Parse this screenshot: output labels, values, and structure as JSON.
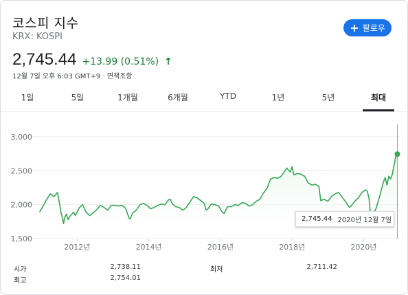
{
  "header": {
    "title": "코스피 지수",
    "ticker": "KRX: KOSPI",
    "follow_label": "팔로우",
    "price": "2,745.44",
    "change": "+13.99 (0.51%)",
    "meta": "12월 7일 오후 6:03 GMT+9 · 면책조항"
  },
  "tabs": [
    {
      "label": "1일"
    },
    {
      "label": "5일"
    },
    {
      "label": "1개월"
    },
    {
      "label": "6개월"
    },
    {
      "label": "YTD"
    },
    {
      "label": "1년"
    },
    {
      "label": "5년"
    },
    {
      "label": "최대"
    }
  ],
  "tooltip": {
    "value": "2,745.44",
    "date": "2020년 12월 7일"
  },
  "stats": {
    "open_label": "시가",
    "open_value": "2,738.11",
    "low_label": "최저",
    "low_value": "2,711.42",
    "high_label": "최고",
    "high_value": "2,754.01"
  },
  "colors": {
    "line": "#34a853",
    "accent": "#1a73e8",
    "positive": "#188038"
  },
  "chart_data": {
    "type": "line",
    "grid": true,
    "ylim": [
      1500,
      3000
    ],
    "yticks": [
      "3,000",
      "2,500",
      "2,000",
      "1,500"
    ],
    "ytick_values": [
      3000,
      2500,
      2000,
      1500
    ],
    "xticks": [
      "2012년",
      "2014년",
      "2016년",
      "2018년",
      "2020년"
    ],
    "xtick_values": [
      2012,
      2014,
      2016,
      2018,
      2020
    ],
    "xlim": [
      2010.9,
      2020.95
    ],
    "series": [
      {
        "x": [
          2010.95,
          2011.05,
          2011.15,
          2011.25,
          2011.35,
          2011.45,
          2011.5,
          2011.55,
          2011.6,
          2011.62,
          2011.65,
          2011.7,
          2011.75,
          2011.8,
          2011.85,
          2011.9,
          2011.95,
          2012.05,
          2012.15,
          2012.25,
          2012.35,
          2012.45,
          2012.55,
          2012.65,
          2012.75,
          2012.85,
          2012.95,
          2013.05,
          2013.15,
          2013.25,
          2013.35,
          2013.45,
          2013.48,
          2013.55,
          2013.65,
          2013.75,
          2013.85,
          2013.95,
          2014.05,
          2014.15,
          2014.25,
          2014.35,
          2014.45,
          2014.55,
          2014.6,
          2014.65,
          2014.75,
          2014.85,
          2014.95,
          2015.05,
          2015.15,
          2015.25,
          2015.35,
          2015.45,
          2015.55,
          2015.6,
          2015.65,
          2015.75,
          2015.85,
          2015.95,
          2016.05,
          2016.1,
          2016.2,
          2016.3,
          2016.4,
          2016.5,
          2016.6,
          2016.7,
          2016.8,
          2016.9,
          2017.0,
          2017.1,
          2017.2,
          2017.3,
          2017.4,
          2017.5,
          2017.6,
          2017.7,
          2017.8,
          2017.85,
          2017.95,
          2018.0,
          2018.05,
          2018.15,
          2018.25,
          2018.35,
          2018.45,
          2018.55,
          2018.65,
          2018.75,
          2018.8,
          2018.9,
          2019.0,
          2019.1,
          2019.2,
          2019.3,
          2019.4,
          2019.5,
          2019.6,
          2019.65,
          2019.75,
          2019.85,
          2019.95,
          2020.05,
          2020.1,
          2020.15,
          2020.2,
          2020.25,
          2020.3,
          2020.35,
          2020.45,
          2020.55,
          2020.6,
          2020.65,
          2020.7,
          2020.75,
          2020.8,
          2020.85,
          2020.9,
          2020.94
        ],
        "y": [
          1890,
          1980,
          2080,
          2160,
          2120,
          2180,
          2040,
          1880,
          1780,
          1720,
          1810,
          1860,
          1780,
          1830,
          1860,
          1890,
          1840,
          1950,
          2000,
          1890,
          1840,
          1880,
          1930,
          1990,
          1960,
          1920,
          1990,
          1990,
          1980,
          1990,
          1950,
          1800,
          1790,
          1880,
          1920,
          2000,
          2020,
          1990,
          1940,
          1960,
          1990,
          2010,
          2000,
          2070,
          2080,
          2020,
          1970,
          1960,
          1920,
          1960,
          2040,
          2120,
          2100,
          2060,
          2020,
          1920,
          1940,
          2010,
          2000,
          1980,
          1890,
          1870,
          1970,
          1970,
          2000,
          1990,
          2030,
          2020,
          1980,
          2000,
          2050,
          2080,
          2170,
          2240,
          2380,
          2400,
          2390,
          2420,
          2500,
          2540,
          2480,
          2560,
          2440,
          2460,
          2450,
          2420,
          2320,
          2290,
          2300,
          2270,
          2060,
          2080,
          2050,
          2120,
          2160,
          2180,
          2110,
          2040,
          1960,
          1980,
          2050,
          2100,
          2180,
          2220,
          2200,
          2090,
          1800,
          1700,
          1900,
          1950,
          2130,
          2330,
          2400,
          2290,
          2420,
          2380,
          2450,
          2590,
          2720,
          2745.44
        ]
      }
    ],
    "last_point": {
      "x": 2020.94,
      "y": 2745.44
    }
  }
}
